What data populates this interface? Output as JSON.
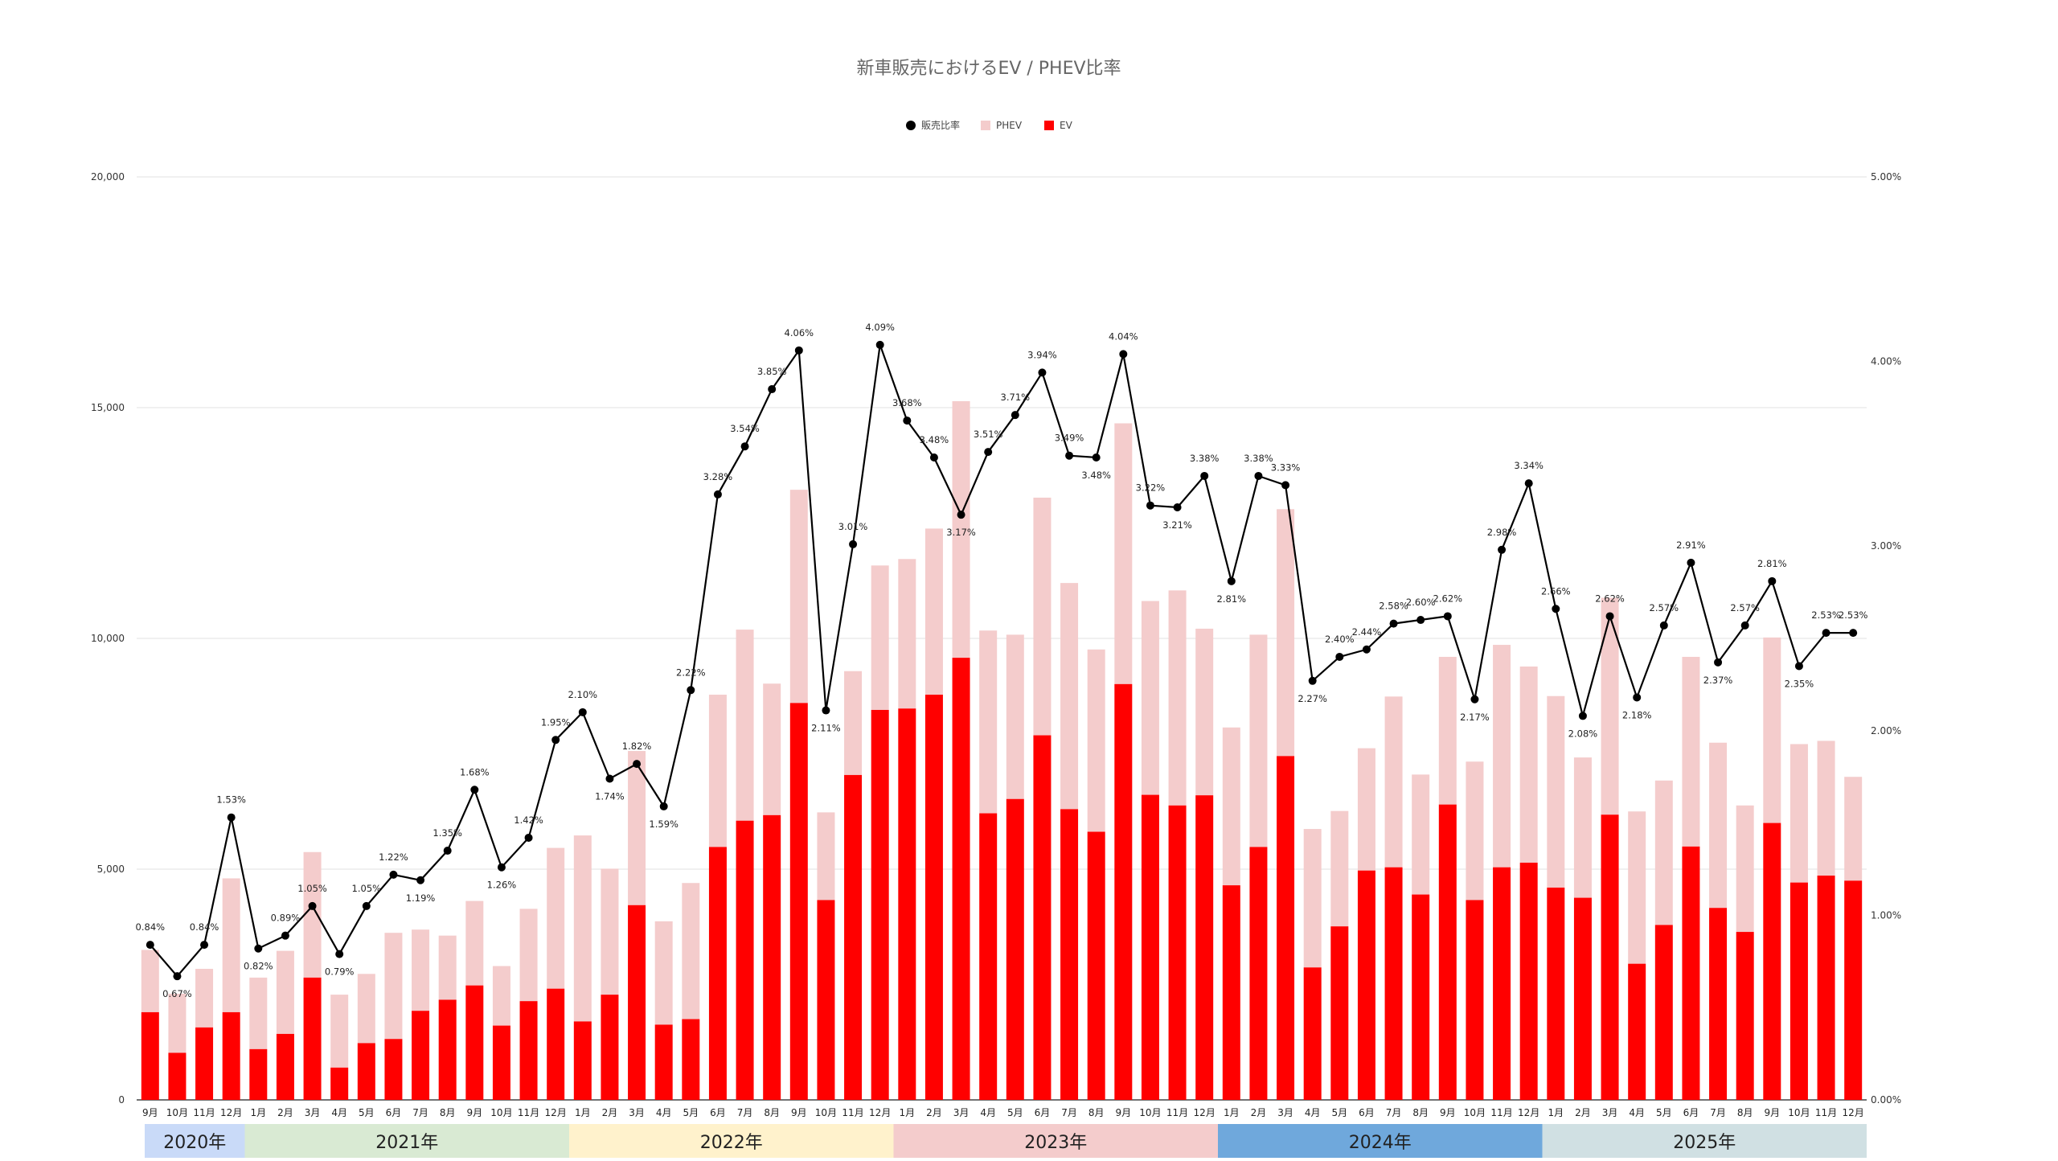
{
  "chart_data": {
    "type": "bar",
    "subtype": "stacked bar + line (dual axis)",
    "title": "新車販売におけるEV / PHEV比率",
    "legend": {
      "placement": "top-center",
      "items": [
        {
          "name": "販売比率",
          "marker": "circle",
          "color": "#000000"
        },
        {
          "name": "PHEV",
          "marker": "square",
          "color": "#f4cccc"
        },
        {
          "name": "EV",
          "marker": "square",
          "color": "#ff0000"
        }
      ]
    },
    "grid": true,
    "y_left": {
      "ylim": [
        0,
        20000
      ],
      "ticks": [
        "0",
        "5,000",
        "10,000",
        "15,000",
        "20,000"
      ]
    },
    "y_right": {
      "ylim": [
        0,
        5
      ],
      "ticks": [
        "0.00%",
        "1.00%",
        "2.00%",
        "3.00%",
        "4.00%",
        "5.00%"
      ]
    },
    "categories": [
      "9月",
      "10月",
      "11月",
      "12月",
      "1月",
      "2月",
      "3月",
      "4月",
      "5月",
      "6月",
      "7月",
      "8月",
      "9月",
      "10月",
      "11月",
      "12月",
      "1月",
      "2月",
      "3月",
      "4月",
      "5月",
      "6月",
      "7月",
      "8月",
      "9月",
      "10月",
      "11月",
      "12月",
      "1月",
      "2月",
      "3月",
      "4月",
      "5月",
      "6月",
      "7月",
      "8月",
      "9月",
      "10月",
      "11月",
      "12月",
      "1月",
      "2月",
      "3月",
      "4月",
      "5月",
      "6月",
      "7月",
      "8月",
      "9月",
      "10月",
      "11月",
      "12月",
      "1月",
      "2月",
      "3月",
      "4月",
      "5月",
      "6月",
      "7月",
      "8月",
      "9月",
      "10月",
      "11月",
      "12月"
    ],
    "years": [
      {
        "label": "2020年",
        "months": 4,
        "color": "#c9daf8"
      },
      {
        "label": "2021年",
        "months": 12,
        "color": "#d9ead3"
      },
      {
        "label": "2022年",
        "months": 12,
        "color": "#fff2cc"
      },
      {
        "label": "2023年",
        "months": 12,
        "color": "#f4cccc"
      },
      {
        "label": "2024年",
        "months": 12,
        "color": "#6fa8dc"
      },
      {
        "label": "2025年",
        "months": 12,
        "color": "#d0e0e3"
      }
    ],
    "series": [
      {
        "name": "EV",
        "axis": "left",
        "color": "#ff0000",
        "values": [
          1900,
          1020,
          1570,
          1900,
          1100,
          1430,
          2650,
          700,
          1230,
          1320,
          1930,
          2170,
          2480,
          1610,
          2140,
          2410,
          1700,
          2280,
          4220,
          1630,
          1750,
          5480,
          6050,
          6170,
          8600,
          4330,
          7040,
          8450,
          8480,
          8780,
          9580,
          6210,
          6520,
          7900,
          6300,
          5810,
          9010,
          6610,
          6380,
          6600,
          4650,
          5480,
          7450,
          2870,
          3760,
          4970,
          5040,
          4450,
          6400,
          4330,
          5040,
          5140,
          4600,
          4380,
          6180,
          2950,
          3790,
          5490,
          4160,
          3640,
          6000,
          4710,
          4860,
          4750
        ]
      },
      {
        "name": "PHEV",
        "axis": "left",
        "color": "#f4cccc",
        "values": [
          1350,
          1280,
          1270,
          2900,
          1550,
          1800,
          2720,
          1580,
          1500,
          2300,
          1760,
          1390,
          1830,
          1290,
          2000,
          3050,
          4030,
          2730,
          3340,
          2240,
          2950,
          3300,
          4140,
          2850,
          4620,
          1900,
          2250,
          3130,
          3240,
          3600,
          5560,
          3960,
          3560,
          5150,
          4900,
          3950,
          5650,
          4200,
          4660,
          3610,
          3420,
          4600,
          5350,
          3000,
          2500,
          2650,
          3700,
          2600,
          3200,
          3000,
          4820,
          4250,
          4150,
          3040,
          4700,
          3300,
          3130,
          4110,
          3580,
          2740,
          4020,
          3000,
          2920,
          2250
        ]
      },
      {
        "name": "販売比率",
        "axis": "right",
        "color": "#000000",
        "values": [
          0.84,
          0.67,
          0.84,
          1.53,
          0.82,
          0.89,
          1.05,
          0.79,
          1.05,
          1.22,
          1.19,
          1.35,
          1.68,
          1.26,
          1.42,
          1.95,
          2.1,
          1.74,
          1.82,
          1.59,
          2.22,
          3.28,
          3.54,
          3.85,
          4.06,
          2.11,
          3.01,
          4.09,
          3.68,
          3.48,
          3.17,
          3.51,
          3.71,
          3.94,
          3.49,
          3.48,
          4.04,
          3.22,
          3.21,
          3.38,
          2.81,
          3.38,
          3.33,
          2.27,
          2.4,
          2.44,
          2.58,
          2.6,
          2.62,
          2.17,
          2.98,
          3.34,
          2.66,
          2.08,
          2.62,
          2.18,
          2.57,
          2.91,
          2.37,
          2.57,
          2.81,
          2.35,
          2.53,
          2.53
        ],
        "labels": [
          "0.84%",
          "0.67%",
          "0.84%",
          "1.53%",
          "0.82%",
          "0.89%",
          "1.05%",
          "0.79%",
          "1.05%",
          "1.22%",
          "1.19%",
          "1.35%",
          "1.68%",
          "1.26%",
          "1.42%",
          "1.95%",
          "2.10%",
          "1.74%",
          "1.82%",
          "1.59%",
          "2.22%",
          "3.28%",
          "3.54%",
          "3.85%",
          "4.06%",
          "2.11%",
          "3.01%",
          "4.09%",
          "3.68%",
          "3.48%",
          "3.17%",
          "3.51%",
          "3.71%",
          "3.94%",
          "3.49%",
          "3.48%",
          "4.04%",
          "3.22%",
          "3.21%",
          "3.38%",
          "2.81%",
          "3.38%",
          "3.33%",
          "2.27%",
          "2.40%",
          "2.44%",
          "2.58%",
          "2.60%",
          "2.62%",
          "2.17%",
          "2.98%",
          "3.34%",
          "2.66%",
          "2.08%",
          "2.62%",
          "2.18%",
          "2.57%",
          "2.91%",
          "2.37%",
          "2.57%",
          "2.81%",
          "2.35%",
          "2.53%",
          "2.53%"
        ]
      }
    ]
  }
}
